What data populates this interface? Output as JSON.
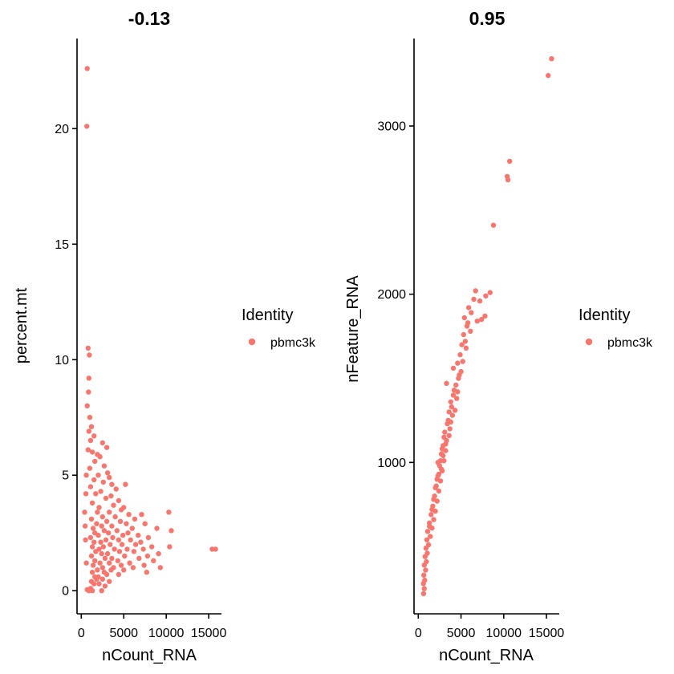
{
  "chart_data": [
    {
      "type": "scatter",
      "title": "-0.13",
      "xlabel": "nCount_RNA",
      "ylabel": "percent.mt",
      "xlim": [
        -500,
        16500
      ],
      "ylim": [
        -1.0,
        23.9
      ],
      "x_ticks": [
        {
          "value": 0,
          "label": "0"
        },
        {
          "value": 5000,
          "label": "5000"
        },
        {
          "value": 10000,
          "label": "10000"
        },
        {
          "value": 15000,
          "label": "15000"
        }
      ],
      "y_ticks": [
        {
          "value": 0,
          "label": "0"
        },
        {
          "value": 5,
          "label": "5"
        },
        {
          "value": 10,
          "label": "10"
        },
        {
          "value": 15,
          "label": "15"
        },
        {
          "value": 20,
          "label": "20"
        }
      ],
      "legend": {
        "title": "Identity",
        "entries": [
          "pbmc3k"
        ],
        "position": "right"
      },
      "series": [
        {
          "name": "pbmc3k",
          "color": "#f8766d",
          "points": [
            [
              700,
              22.6
            ],
            [
              650,
              20.1
            ],
            [
              800,
              10.5
            ],
            [
              950,
              10.2
            ],
            [
              900,
              9.2
            ],
            [
              850,
              8.6
            ],
            [
              700,
              8.0
            ],
            [
              1000,
              7.5
            ],
            [
              1200,
              7.1
            ],
            [
              900,
              6.9
            ],
            [
              1500,
              6.7
            ],
            [
              1100,
              6.5
            ],
            [
              2500,
              6.4
            ],
            [
              3000,
              6.2
            ],
            [
              800,
              6.1
            ],
            [
              1300,
              6.0
            ],
            [
              1900,
              5.9
            ],
            [
              2200,
              5.8
            ],
            [
              1600,
              5.6
            ],
            [
              2700,
              5.4
            ],
            [
              1000,
              5.3
            ],
            [
              3100,
              5.1
            ],
            [
              2000,
              5.0
            ],
            [
              3300,
              4.9
            ],
            [
              1500,
              4.8
            ],
            [
              2600,
              4.7
            ],
            [
              3600,
              4.6
            ],
            [
              1100,
              4.5
            ],
            [
              4100,
              4.4
            ],
            [
              2300,
              4.3
            ],
            [
              1700,
              4.2
            ],
            [
              3500,
              4.1
            ],
            [
              2900,
              4.0
            ],
            [
              5200,
              4.6
            ],
            [
              4400,
              3.9
            ],
            [
              1300,
              3.8
            ],
            [
              3800,
              3.7
            ],
            [
              2100,
              3.6
            ],
            [
              5000,
              3.6
            ],
            [
              4700,
              3.5
            ],
            [
              1900,
              3.4
            ],
            [
              3300,
              3.4
            ],
            [
              5600,
              3.3
            ],
            [
              7100,
              3.3
            ],
            [
              10300,
              3.4
            ],
            [
              2500,
              3.2
            ],
            [
              4000,
              3.2
            ],
            [
              6300,
              3.1
            ],
            [
              1200,
              3.1
            ],
            [
              3000,
              3.0
            ],
            [
              4600,
              3.0
            ],
            [
              5300,
              2.9
            ],
            [
              7500,
              2.9
            ],
            [
              1800,
              2.9
            ],
            [
              2400,
              2.8
            ],
            [
              3600,
              2.8
            ],
            [
              6000,
              2.7
            ],
            [
              8900,
              2.7
            ],
            [
              1400,
              2.7
            ],
            [
              4200,
              2.6
            ],
            [
              10600,
              2.6
            ],
            [
              2700,
              2.6
            ],
            [
              5500,
              2.5
            ],
            [
              3200,
              2.5
            ],
            [
              1600,
              2.5
            ],
            [
              6700,
              2.4
            ],
            [
              2000,
              2.4
            ],
            [
              4900,
              2.4
            ],
            [
              7900,
              2.3
            ],
            [
              3700,
              2.3
            ],
            [
              1100,
              2.3
            ],
            [
              2900,
              2.2
            ],
            [
              5800,
              2.2
            ],
            [
              4400,
              2.2
            ],
            [
              7000,
              2.1
            ],
            [
              2300,
              2.1
            ],
            [
              1500,
              2.1
            ],
            [
              3400,
              2.0
            ],
            [
              6400,
              2.0
            ],
            [
              4800,
              2.0
            ],
            [
              8300,
              1.9
            ],
            [
              2600,
              1.9
            ],
            [
              1300,
              1.9
            ],
            [
              3900,
              1.8
            ],
            [
              5400,
              1.8
            ],
            [
              10400,
              1.9
            ],
            [
              7300,
              1.8
            ],
            [
              2100,
              1.8
            ],
            [
              15400,
              1.8
            ],
            [
              15800,
              1.8
            ],
            [
              1700,
              1.7
            ],
            [
              4500,
              1.7
            ],
            [
              6200,
              1.7
            ],
            [
              3100,
              1.6
            ],
            [
              9100,
              1.6
            ],
            [
              2400,
              1.6
            ],
            [
              5100,
              1.5
            ],
            [
              7800,
              1.5
            ],
            [
              1200,
              1.5
            ],
            [
              3600,
              1.4
            ],
            [
              6800,
              1.4
            ],
            [
              2800,
              1.4
            ],
            [
              4300,
              1.3
            ],
            [
              8500,
              1.3
            ],
            [
              1600,
              1.3
            ],
            [
              5700,
              1.2
            ],
            [
              3300,
              1.2
            ],
            [
              2200,
              1.2
            ],
            [
              7400,
              1.1
            ],
            [
              4700,
              1.1
            ],
            [
              1400,
              1.1
            ],
            [
              3800,
              1.0
            ],
            [
              6100,
              1.0
            ],
            [
              2500,
              1.0
            ],
            [
              9300,
              1.0
            ],
            [
              5000,
              0.9
            ],
            [
              1900,
              0.9
            ],
            [
              3500,
              0.9
            ],
            [
              7700,
              0.8
            ],
            [
              2700,
              0.8
            ],
            [
              1300,
              0.8
            ],
            [
              4400,
              0.7
            ],
            [
              3000,
              0.7
            ],
            [
              2000,
              0.6
            ],
            [
              1600,
              0.6
            ],
            [
              2500,
              0.5
            ],
            [
              1800,
              0.5
            ],
            [
              3300,
              0.4
            ],
            [
              1200,
              0.4
            ],
            [
              2100,
              0.3
            ],
            [
              1500,
              0.3
            ],
            [
              2800,
              0.2
            ],
            [
              1100,
              0.1
            ],
            [
              700,
              0.05
            ],
            [
              900,
              0.0
            ],
            [
              2400,
              0.0
            ],
            [
              1300,
              0.0
            ],
            [
              600,
              1.2
            ],
            [
              500,
              2.2
            ],
            [
              400,
              3.4
            ],
            [
              550,
              4.2
            ],
            [
              600,
              5.0
            ],
            [
              450,
              2.8
            ]
          ]
        }
      ]
    },
    {
      "type": "scatter",
      "title": "0.95",
      "xlabel": "nCount_RNA",
      "ylabel": "nFeature_RNA",
      "xlim": [
        -500,
        16500
      ],
      "ylim": [
        100,
        3520
      ],
      "x_ticks": [
        {
          "value": 0,
          "label": "0"
        },
        {
          "value": 5000,
          "label": "5000"
        },
        {
          "value": 10000,
          "label": "10000"
        },
        {
          "value": 15000,
          "label": "15000"
        }
      ],
      "y_ticks": [
        {
          "value": 1000,
          "label": "1000"
        },
        {
          "value": 2000,
          "label": "2000"
        },
        {
          "value": 3000,
          "label": "3000"
        }
      ],
      "legend": {
        "title": "Identity",
        "entries": [
          "pbmc3k"
        ],
        "position": "right"
      },
      "series": [
        {
          "name": "pbmc3k",
          "color": "#f8766d",
          "points": [
            [
              15600,
              3400
            ],
            [
              15200,
              3300
            ],
            [
              10700,
              2790
            ],
            [
              10400,
              2700
            ],
            [
              10500,
              2680
            ],
            [
              8800,
              2410
            ],
            [
              8400,
              2010
            ],
            [
              7900,
              1990
            ],
            [
              6700,
              2020
            ],
            [
              7200,
              1960
            ],
            [
              6500,
              1970
            ],
            [
              5900,
              1920
            ],
            [
              6200,
              1890
            ],
            [
              7800,
              1870
            ],
            [
              7400,
              1850
            ],
            [
              5400,
              1860
            ],
            [
              6900,
              1840
            ],
            [
              5700,
              1810
            ],
            [
              6100,
              1780
            ],
            [
              5300,
              1760
            ],
            [
              5100,
              1700
            ],
            [
              5600,
              1680
            ],
            [
              4900,
              1640
            ],
            [
              5200,
              1600
            ],
            [
              4600,
              1590
            ],
            [
              4800,
              1520
            ],
            [
              3300,
              1470
            ],
            [
              4400,
              1460
            ],
            [
              4100,
              1400
            ],
            [
              4500,
              1380
            ],
            [
              3800,
              1360
            ],
            [
              3600,
              1300
            ],
            [
              4000,
              1280
            ],
            [
              3400,
              1230
            ],
            [
              3700,
              1200
            ],
            [
              3100,
              1180
            ],
            [
              3300,
              1130
            ],
            [
              2900,
              1100
            ],
            [
              3200,
              1070
            ],
            [
              2700,
              1050
            ],
            [
              3000,
              1010
            ],
            [
              2500,
              980
            ],
            [
              2800,
              950
            ],
            [
              2300,
              920
            ],
            [
              2600,
              890
            ],
            [
              2100,
              860
            ],
            [
              2400,
              830
            ],
            [
              1900,
              800
            ],
            [
              2200,
              770
            ],
            [
              1700,
              740
            ],
            [
              2000,
              710
            ],
            [
              1500,
              690
            ],
            [
              1800,
              660
            ],
            [
              1300,
              640
            ],
            [
              1600,
              610
            ],
            [
              1100,
              590
            ],
            [
              1400,
              560
            ],
            [
              1000,
              540
            ],
            [
              1200,
              510
            ],
            [
              900,
              490
            ],
            [
              1050,
              460
            ],
            [
              800,
              440
            ],
            [
              950,
              410
            ],
            [
              700,
              390
            ],
            [
              850,
              360
            ],
            [
              650,
              330
            ],
            [
              750,
              300
            ],
            [
              600,
              280
            ],
            [
              700,
              250
            ],
            [
              620,
              220
            ],
            [
              3500,
              1250
            ],
            [
              3900,
              1330
            ],
            [
              4200,
              1430
            ],
            [
              4700,
              1500
            ],
            [
              2600,
              1010
            ],
            [
              2900,
              1040
            ],
            [
              3600,
              1160
            ],
            [
              4300,
              1310
            ],
            [
              5000,
              1540
            ],
            [
              2200,
              900
            ],
            [
              1800,
              780
            ],
            [
              2700,
              960
            ],
            [
              3200,
              1110
            ],
            [
              3800,
              1240
            ],
            [
              4600,
              1420
            ],
            [
              2000,
              850
            ],
            [
              1600,
              720
            ],
            [
              2400,
              930
            ],
            [
              1300,
              620
            ],
            [
              2800,
              1080
            ],
            [
              5500,
              1720
            ],
            [
              4100,
              1560
            ],
            [
              5800,
              1830
            ],
            [
              3000,
              1150
            ],
            [
              2300,
              1000
            ]
          ]
        }
      ]
    }
  ]
}
